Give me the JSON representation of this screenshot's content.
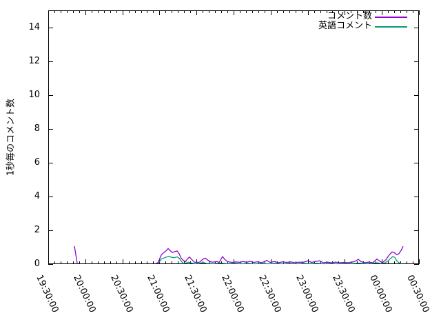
{
  "chart_data": {
    "type": "line",
    "title": "",
    "ylabel": "1秒毎のコメント数",
    "xlabel": "",
    "ylim": [
      0,
      15
    ],
    "xlim_minutes": [
      0,
      300
    ],
    "xtick_interval_minutes": 30,
    "minor_tick_minutes": 5,
    "grid": false,
    "legend_position": "top-right-inside",
    "xtick_labels": [
      "19:30:00",
      "20:00:00",
      "20:30:00",
      "21:00:00",
      "21:30:00",
      "22:00:00",
      "22:30:00",
      "23:00:00",
      "23:30:00",
      "00:00:00",
      "00:30:00"
    ],
    "ytick_values": [
      0,
      2,
      4,
      6,
      8,
      10,
      12,
      14
    ],
    "axis_color": "#000000",
    "series": [
      {
        "name": "コメント数",
        "color": "#9400d3",
        "segments": [
          [
            [
              21.2,
              1.06
            ],
            [
              23.5,
              0.05
            ]
          ],
          [
            [
              87,
              0.03
            ],
            [
              89,
              0.1
            ],
            [
              91.5,
              0.55
            ],
            [
              93.5,
              0.68
            ],
            [
              95.5,
              0.8
            ],
            [
              97,
              0.92
            ],
            [
              98.7,
              0.8
            ],
            [
              100.4,
              0.68
            ],
            [
              102,
              0.73
            ],
            [
              104.3,
              0.78
            ],
            [
              106,
              0.6
            ],
            [
              107.6,
              0.35
            ],
            [
              109.3,
              0.22
            ],
            [
              111,
              0.14
            ],
            [
              112.6,
              0.3
            ],
            [
              114.3,
              0.42
            ],
            [
              116,
              0.28
            ],
            [
              118.2,
              0.12
            ],
            [
              120.4,
              0.1
            ],
            [
              122.7,
              0.12
            ],
            [
              124.9,
              0.28
            ],
            [
              127.1,
              0.35
            ],
            [
              129.4,
              0.22
            ],
            [
              131.6,
              0.13
            ],
            [
              133.8,
              0.12
            ],
            [
              136.1,
              0.16
            ],
            [
              138.3,
              0.1
            ],
            [
              141.1,
              0.45
            ],
            [
              142.8,
              0.28
            ],
            [
              145,
              0.15
            ],
            [
              147.2,
              0.12
            ],
            [
              149.4,
              0.1
            ],
            [
              152.2,
              0.13
            ],
            [
              155,
              0.1
            ],
            [
              157.8,
              0.15
            ],
            [
              160.6,
              0.1
            ],
            [
              163.4,
              0.17
            ],
            [
              166.2,
              0.1
            ],
            [
              169.5,
              0.14
            ],
            [
              172.9,
              0.08
            ],
            [
              176.8,
              0.22
            ],
            [
              179.5,
              0.1
            ],
            [
              182.9,
              0.15
            ],
            [
              186.2,
              0.08
            ],
            [
              189.6,
              0.14
            ],
            [
              192.9,
              0.1
            ],
            [
              196.3,
              0.13
            ],
            [
              199.6,
              0.08
            ],
            [
              203,
              0.12
            ],
            [
              206.3,
              0.1
            ],
            [
              210.2,
              0.2
            ],
            [
              213,
              0.1
            ],
            [
              216.3,
              0.15
            ],
            [
              219.7,
              0.2
            ],
            [
              222.5,
              0.08
            ],
            [
              225.8,
              0.12
            ],
            [
              229.2,
              0.08
            ],
            [
              232.5,
              0.12
            ],
            [
              235.8,
              0.08
            ],
            [
              239.2,
              0.1
            ],
            [
              242.5,
              0.08
            ],
            [
              245.9,
              0.12
            ],
            [
              248.7,
              0.18
            ],
            [
              250.9,
              0.28
            ],
            [
              253.1,
              0.15
            ],
            [
              255.9,
              0.08
            ],
            [
              259.3,
              0.12
            ],
            [
              262.6,
              0.08
            ],
            [
              266,
              0.3
            ],
            [
              268.2,
              0.18
            ],
            [
              270.4,
              0.08
            ],
            [
              273.2,
              0.25
            ],
            [
              276,
              0.55
            ],
            [
              278.2,
              0.72
            ],
            [
              279.9,
              0.68
            ],
            [
              282.1,
              0.55
            ],
            [
              283.8,
              0.62
            ],
            [
              285.5,
              0.8
            ],
            [
              287.2,
              1.05
            ]
          ]
        ]
      },
      {
        "name": "英語コメント",
        "color": "#009e73",
        "segments": [
          [
            [
              89,
              0.02
            ],
            [
              91.5,
              0.3
            ],
            [
              93.7,
              0.36
            ],
            [
              95.9,
              0.42
            ],
            [
              97.6,
              0.47
            ],
            [
              99.8,
              0.4
            ],
            [
              102,
              0.38
            ],
            [
              104.3,
              0.43
            ],
            [
              106,
              0.35
            ],
            [
              107.6,
              0.18
            ],
            [
              109.3,
              0.04
            ],
            [
              111.5,
              0.06
            ],
            [
              113.7,
              0.12
            ],
            [
              116,
              0.06
            ],
            [
              118.8,
              0.03
            ],
            [
              122.7,
              0.05
            ],
            [
              125.5,
              0.1
            ],
            [
              128.2,
              0.04
            ],
            [
              133.8,
              0.03
            ],
            [
              139.4,
              0.06
            ],
            [
              145,
              0.03
            ],
            [
              150.6,
              0.05
            ],
            [
              156.1,
              0.02
            ],
            [
              161.7,
              0.04
            ],
            [
              167.3,
              0.02
            ],
            [
              172.9,
              0.04
            ],
            [
              178.4,
              0.02
            ],
            [
              184,
              0.04
            ],
            [
              189.6,
              0.02
            ],
            [
              195.2,
              0.04
            ],
            [
              200.7,
              0.02
            ],
            [
              206.3,
              0.04
            ],
            [
              211.9,
              0.03
            ],
            [
              217.4,
              0.05
            ],
            [
              223,
              0.02
            ],
            [
              228.6,
              0.04
            ],
            [
              234.2,
              0.02
            ],
            [
              239.8,
              0.04
            ],
            [
              245.3,
              0.03
            ],
            [
              250.9,
              0.06
            ],
            [
              256.5,
              0.03
            ],
            [
              262.1,
              0.04
            ],
            [
              266,
              0.08
            ],
            [
              268.8,
              0.04
            ],
            [
              272.1,
              0.06
            ],
            [
              274.3,
              0.15
            ],
            [
              276.5,
              0.3
            ],
            [
              278.8,
              0.45
            ],
            [
              280.4,
              0.4
            ],
            [
              282.1,
              0.2
            ],
            [
              283.8,
              0.08
            ],
            [
              286,
              0.02
            ]
          ]
        ]
      }
    ]
  }
}
